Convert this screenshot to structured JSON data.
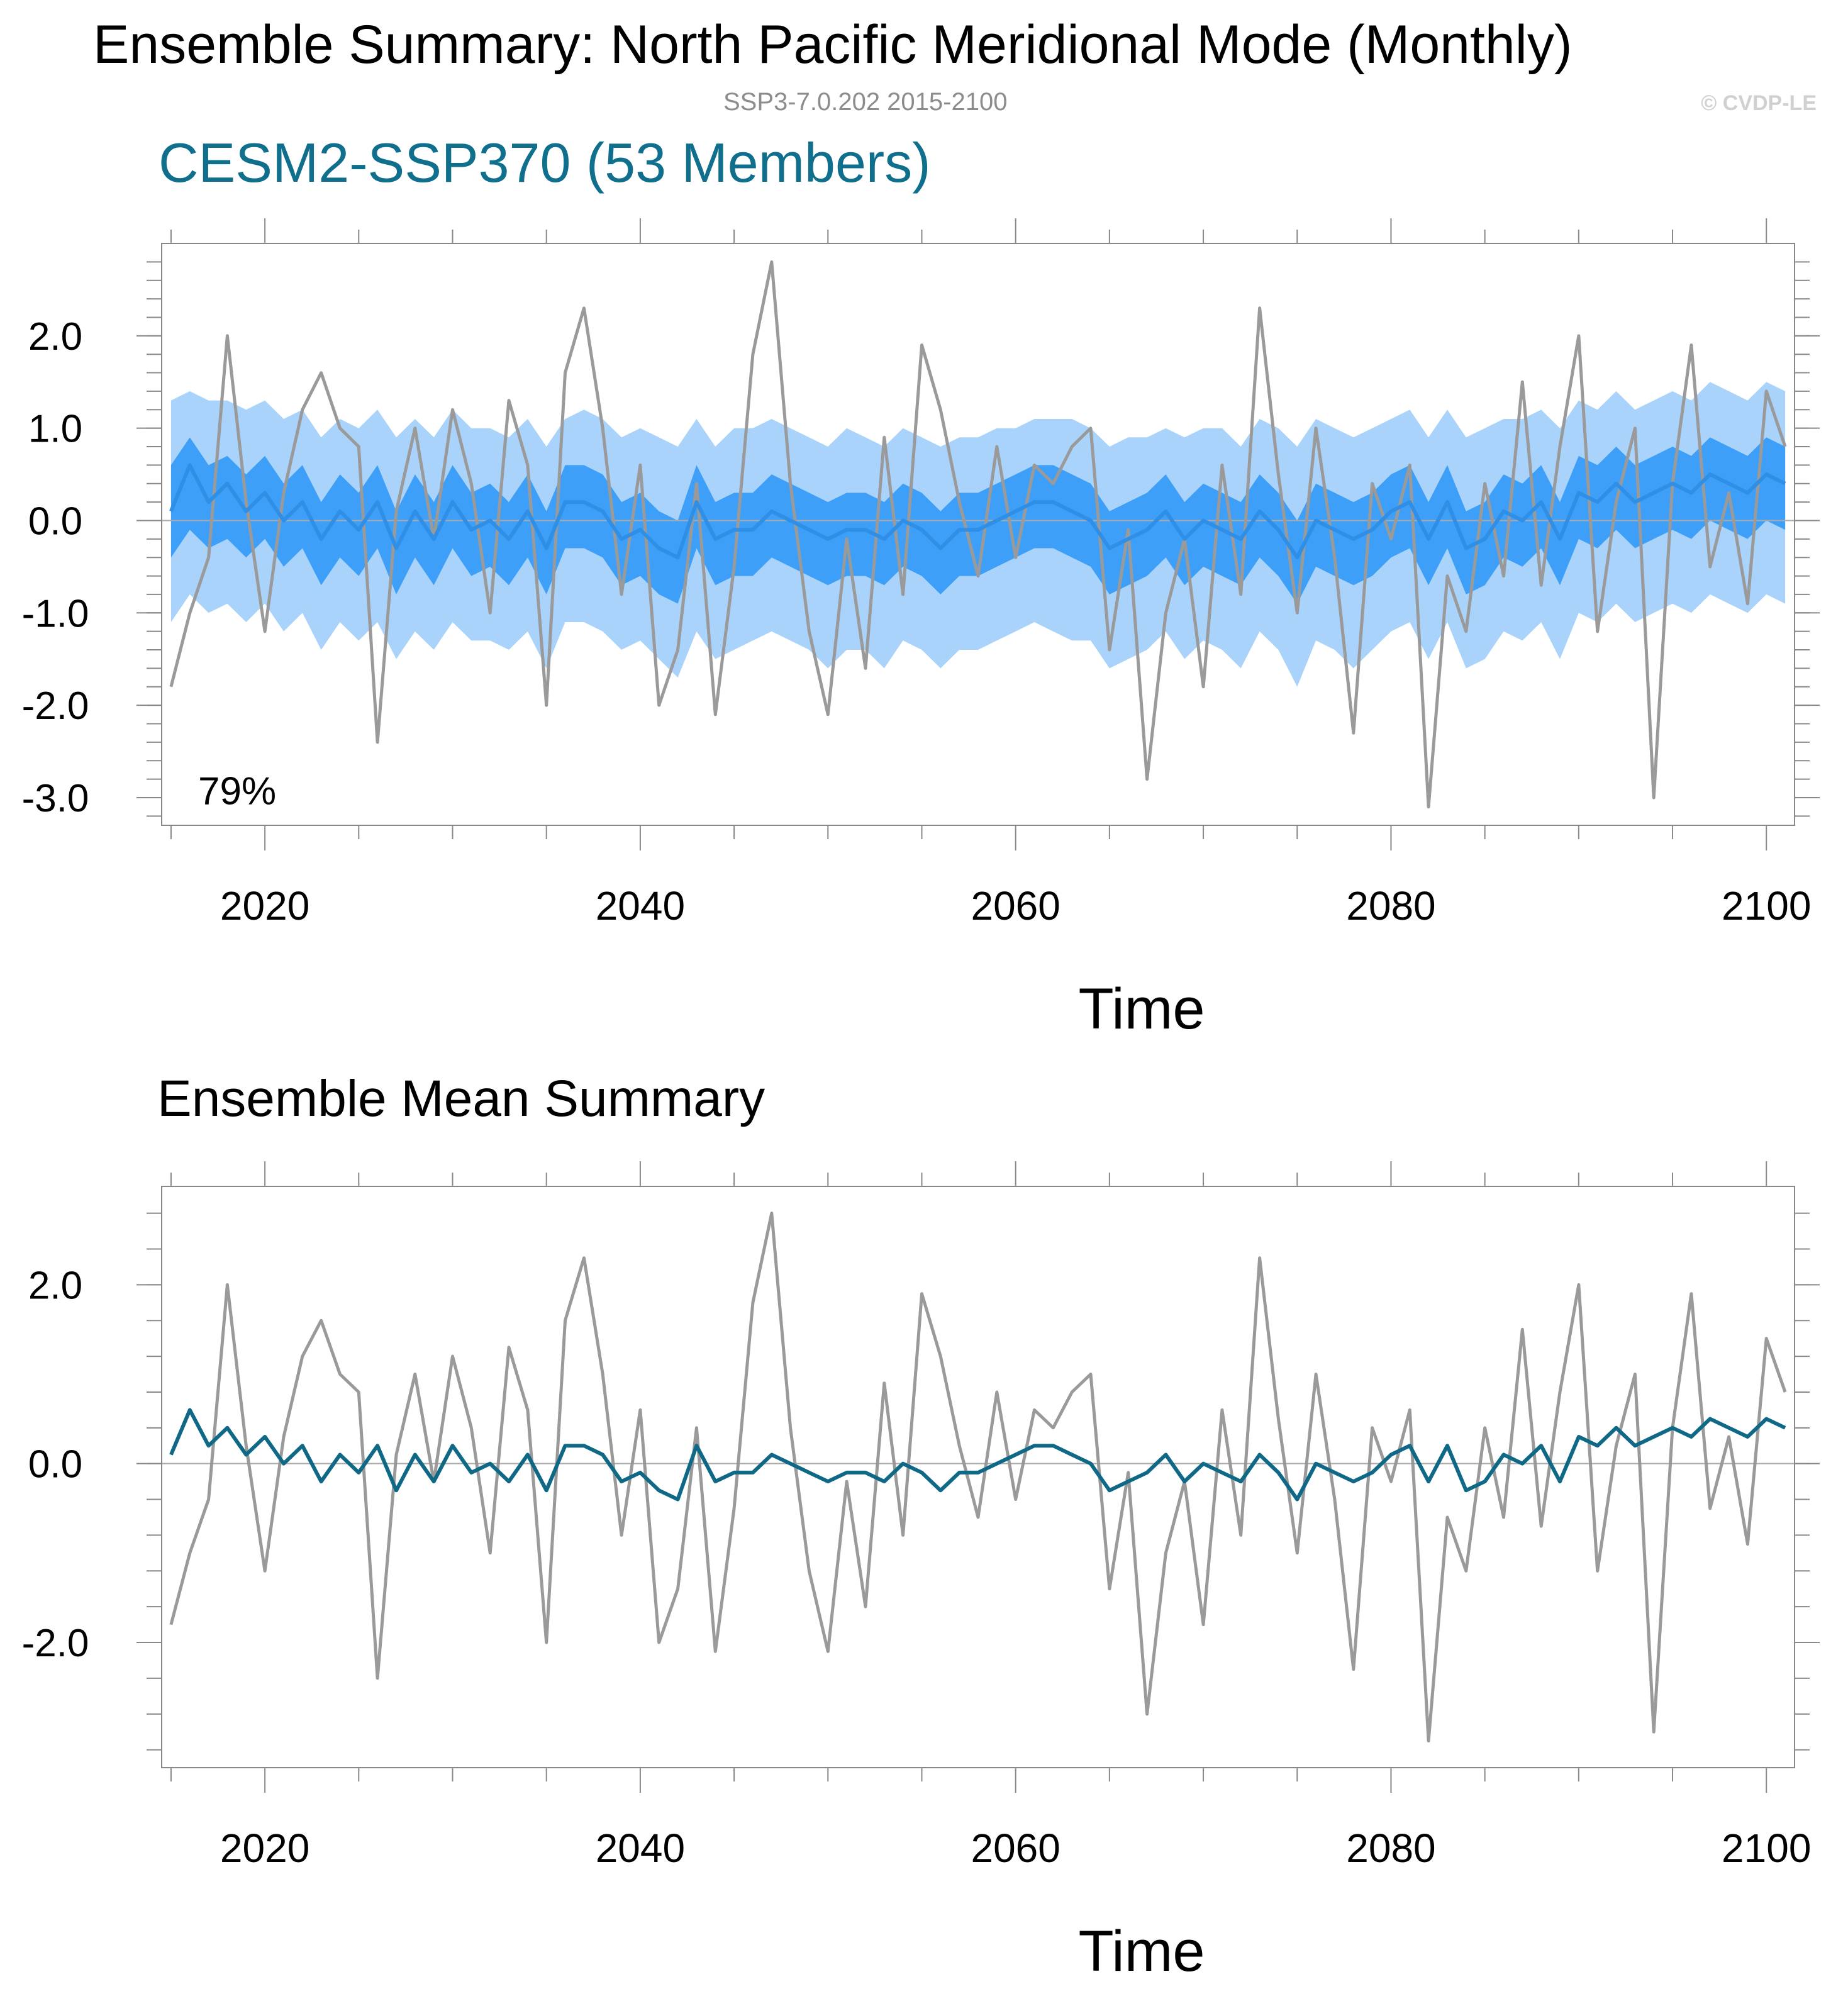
{
  "header": {
    "title": "Ensemble Summary: North Pacific Meridional Mode (Monthly)",
    "subtitle": "SSP3-7.0.202 2015-2100",
    "credit": "© CVDP-LE"
  },
  "colors": {
    "observed": "#9a9a9a",
    "ensemble_mean_top": "#2f8fe6",
    "ensemble_mean_bottom": "#0e6886",
    "spread_outer": "#a9d3fb",
    "spread_inner": "#3d9ff7",
    "title_accent": "#0f6f8c",
    "axis": "#888888"
  },
  "chart_data": [
    {
      "type": "line",
      "title": "CESM2-SSP370 (53 Members)",
      "xlabel": "Time",
      "ylabel": "",
      "xlim": [
        2014.5,
        2101.5
      ],
      "ylim": [
        -3.3,
        3.0
      ],
      "x_ticks": [
        2020,
        2040,
        2060,
        2080,
        2100
      ],
      "x_tick_labels": [
        "2020",
        "2040",
        "2060",
        "2080",
        "2100"
      ],
      "y_ticks": [
        2.0,
        1.0,
        0.0,
        -1.0,
        -2.0,
        -3.0
      ],
      "y_tick_labels": [
        "2.0",
        "1.0",
        "0.0",
        "-1.0",
        "-2.0",
        "-3.0"
      ],
      "annotation": "79%",
      "x": [
        2015,
        2016,
        2017,
        2018,
        2019,
        2020,
        2021,
        2022,
        2023,
        2024,
        2025,
        2026,
        2027,
        2028,
        2029,
        2030,
        2031,
        2032,
        2033,
        2034,
        2035,
        2036,
        2037,
        2038,
        2039,
        2040,
        2041,
        2042,
        2043,
        2044,
        2045,
        2046,
        2047,
        2048,
        2049,
        2050,
        2051,
        2052,
        2053,
        2054,
        2055,
        2056,
        2057,
        2058,
        2059,
        2060,
        2061,
        2062,
        2063,
        2064,
        2065,
        2066,
        2067,
        2068,
        2069,
        2070,
        2071,
        2072,
        2073,
        2074,
        2075,
        2076,
        2077,
        2078,
        2079,
        2080,
        2081,
        2082,
        2083,
        2084,
        2085,
        2086,
        2087,
        2088,
        2089,
        2090,
        2091,
        2092,
        2093,
        2094,
        2095,
        2096,
        2097,
        2098,
        2099,
        2100,
        2101
      ],
      "series": [
        {
          "role": "observed",
          "values": [
            -1.8,
            -1.0,
            -0.4,
            2.0,
            0.2,
            -1.2,
            0.3,
            1.2,
            1.6,
            1.0,
            0.8,
            -2.4,
            0.1,
            1.0,
            -0.2,
            1.2,
            0.4,
            -1.0,
            1.3,
            0.6,
            -2.0,
            1.6,
            2.3,
            1.0,
            -0.8,
            0.6,
            -2.0,
            -1.4,
            0.4,
            -2.1,
            -0.5,
            1.8,
            2.8,
            0.4,
            -1.2,
            -2.1,
            -0.2,
            -1.6,
            0.9,
            -0.8,
            1.9,
            1.2,
            0.2,
            -0.6,
            0.8,
            -0.4,
            0.6,
            0.4,
            0.8,
            1.0,
            -1.4,
            -0.1,
            -2.8,
            -1.0,
            -0.2,
            -1.8,
            0.6,
            -0.8,
            2.3,
            0.5,
            -1.0,
            1.0,
            -0.4,
            -2.3,
            0.4,
            -0.2,
            0.6,
            -3.1,
            -0.6,
            -1.2,
            0.4,
            -0.6,
            1.5,
            -0.7,
            0.8,
            2.0,
            -1.2,
            0.2,
            1.0,
            -3.0,
            0.4,
            1.9,
            -0.5,
            0.3,
            -0.9,
            1.4,
            0.8
          ]
        },
        {
          "role": "ensemble mean",
          "values": [
            0.1,
            0.6,
            0.2,
            0.4,
            0.1,
            0.3,
            0.0,
            0.2,
            -0.2,
            0.1,
            -0.1,
            0.2,
            -0.3,
            0.1,
            -0.2,
            0.2,
            -0.1,
            0.0,
            -0.2,
            0.1,
            -0.3,
            0.2,
            0.2,
            0.1,
            -0.2,
            -0.1,
            -0.3,
            -0.4,
            0.2,
            -0.2,
            -0.1,
            -0.1,
            0.1,
            0.0,
            -0.1,
            -0.2,
            -0.1,
            -0.1,
            -0.2,
            0.0,
            -0.1,
            -0.3,
            -0.1,
            -0.1,
            0.0,
            0.1,
            0.2,
            0.2,
            0.1,
            0.0,
            -0.3,
            -0.2,
            -0.1,
            0.1,
            -0.2,
            0.0,
            -0.1,
            -0.2,
            0.1,
            -0.1,
            -0.4,
            0.0,
            -0.1,
            -0.2,
            -0.1,
            0.1,
            0.2,
            -0.2,
            0.2,
            -0.3,
            -0.2,
            0.1,
            0.0,
            0.2,
            -0.2,
            0.3,
            0.2,
            0.4,
            0.2,
            0.3,
            0.4,
            0.3,
            0.5,
            0.4,
            0.3,
            0.5,
            0.4
          ]
        },
        {
          "role": "10th-90th percentile range",
          "upper": [
            1.3,
            1.4,
            1.3,
            1.3,
            1.2,
            1.3,
            1.1,
            1.2,
            0.9,
            1.1,
            1.0,
            1.2,
            0.9,
            1.1,
            0.9,
            1.2,
            1.0,
            1.0,
            0.9,
            1.1,
            0.8,
            1.1,
            1.2,
            1.1,
            0.9,
            1.0,
            0.9,
            0.8,
            1.1,
            0.8,
            1.0,
            1.0,
            1.1,
            1.0,
            0.9,
            0.8,
            1.0,
            0.9,
            0.8,
            1.0,
            0.9,
            0.8,
            0.9,
            0.9,
            1.0,
            1.0,
            1.1,
            1.1,
            1.1,
            1.0,
            0.8,
            0.9,
            0.9,
            1.0,
            0.9,
            1.0,
            1.0,
            0.8,
            1.1,
            1.0,
            0.8,
            1.1,
            1.0,
            0.9,
            1.0,
            1.1,
            1.2,
            0.9,
            1.2,
            0.9,
            1.0,
            1.1,
            1.1,
            1.2,
            1.0,
            1.3,
            1.2,
            1.4,
            1.2,
            1.3,
            1.4,
            1.3,
            1.5,
            1.4,
            1.3,
            1.5,
            1.4
          ],
          "lower": [
            -1.1,
            -0.8,
            -1.0,
            -0.9,
            -1.1,
            -0.9,
            -1.2,
            -1.0,
            -1.4,
            -1.1,
            -1.3,
            -1.1,
            -1.5,
            -1.2,
            -1.4,
            -1.1,
            -1.3,
            -1.3,
            -1.4,
            -1.2,
            -1.6,
            -1.1,
            -1.1,
            -1.2,
            -1.4,
            -1.3,
            -1.5,
            -1.7,
            -1.2,
            -1.5,
            -1.4,
            -1.3,
            -1.2,
            -1.3,
            -1.4,
            -1.6,
            -1.4,
            -1.4,
            -1.6,
            -1.3,
            -1.4,
            -1.6,
            -1.4,
            -1.4,
            -1.3,
            -1.2,
            -1.1,
            -1.2,
            -1.3,
            -1.3,
            -1.6,
            -1.5,
            -1.4,
            -1.2,
            -1.5,
            -1.3,
            -1.4,
            -1.6,
            -1.2,
            -1.4,
            -1.8,
            -1.3,
            -1.4,
            -1.6,
            -1.4,
            -1.2,
            -1.1,
            -1.5,
            -1.1,
            -1.6,
            -1.5,
            -1.2,
            -1.3,
            -1.1,
            -1.5,
            -1.0,
            -1.1,
            -0.9,
            -1.1,
            -1.0,
            -0.9,
            -1.0,
            -0.8,
            -0.9,
            -1.0,
            -0.8,
            -0.9
          ]
        },
        {
          "role": "25th-75th percentile range",
          "upper": [
            0.6,
            0.9,
            0.6,
            0.7,
            0.5,
            0.7,
            0.4,
            0.6,
            0.2,
            0.5,
            0.3,
            0.6,
            0.1,
            0.5,
            0.2,
            0.6,
            0.3,
            0.4,
            0.2,
            0.5,
            0.1,
            0.6,
            0.6,
            0.5,
            0.2,
            0.3,
            0.1,
            0.0,
            0.6,
            0.2,
            0.3,
            0.3,
            0.5,
            0.4,
            0.3,
            0.2,
            0.3,
            0.3,
            0.2,
            0.4,
            0.3,
            0.1,
            0.3,
            0.3,
            0.4,
            0.5,
            0.6,
            0.6,
            0.5,
            0.4,
            0.1,
            0.2,
            0.3,
            0.5,
            0.2,
            0.4,
            0.3,
            0.2,
            0.5,
            0.3,
            0.0,
            0.4,
            0.3,
            0.2,
            0.3,
            0.5,
            0.6,
            0.2,
            0.6,
            0.1,
            0.2,
            0.5,
            0.4,
            0.6,
            0.2,
            0.7,
            0.6,
            0.8,
            0.6,
            0.7,
            0.8,
            0.7,
            0.9,
            0.8,
            0.7,
            0.9,
            0.8
          ],
          "lower": [
            -0.4,
            -0.1,
            -0.3,
            -0.2,
            -0.4,
            -0.2,
            -0.5,
            -0.3,
            -0.7,
            -0.4,
            -0.6,
            -0.3,
            -0.8,
            -0.4,
            -0.7,
            -0.3,
            -0.6,
            -0.5,
            -0.7,
            -0.4,
            -0.8,
            -0.3,
            -0.3,
            -0.4,
            -0.7,
            -0.6,
            -0.8,
            -0.9,
            -0.3,
            -0.7,
            -0.6,
            -0.6,
            -0.4,
            -0.5,
            -0.6,
            -0.7,
            -0.6,
            -0.6,
            -0.7,
            -0.5,
            -0.6,
            -0.8,
            -0.6,
            -0.6,
            -0.5,
            -0.4,
            -0.3,
            -0.3,
            -0.4,
            -0.5,
            -0.8,
            -0.7,
            -0.6,
            -0.4,
            -0.7,
            -0.5,
            -0.6,
            -0.7,
            -0.4,
            -0.6,
            -0.9,
            -0.5,
            -0.6,
            -0.7,
            -0.6,
            -0.4,
            -0.3,
            -0.7,
            -0.3,
            -0.8,
            -0.7,
            -0.4,
            -0.5,
            -0.3,
            -0.7,
            -0.2,
            -0.3,
            -0.1,
            -0.3,
            -0.2,
            -0.1,
            -0.2,
            0.0,
            -0.1,
            -0.2,
            0.0,
            -0.1
          ]
        }
      ]
    },
    {
      "type": "line",
      "title": "Ensemble Mean Summary",
      "xlabel": "Time",
      "ylabel": "",
      "xlim": [
        2014.5,
        2101.5
      ],
      "ylim": [
        -3.4,
        3.1
      ],
      "x_ticks": [
        2020,
        2040,
        2060,
        2080,
        2100
      ],
      "x_tick_labels": [
        "2020",
        "2040",
        "2060",
        "2080",
        "2100"
      ],
      "y_ticks": [
        2.0,
        0.0,
        -2.0
      ],
      "y_tick_labels": [
        "2.0",
        "0.0",
        "-2.0"
      ],
      "same_series_as_chart": 0
    }
  ]
}
